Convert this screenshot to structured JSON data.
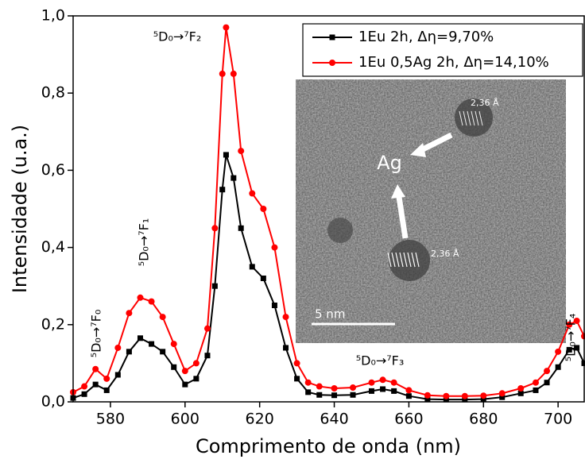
{
  "chart_data": {
    "type": "line",
    "x_label": "Comprimento de onda (nm)",
    "y_label": "Intensidade (u.a.)",
    "xlim": [
      570,
      707
    ],
    "xticks": [
      580,
      600,
      620,
      640,
      660,
      680,
      700
    ],
    "ylim": [
      0,
      1
    ],
    "yticks": [
      {
        "value": 0,
        "label": "0,0"
      },
      {
        "value": 0.2,
        "label": "0,2"
      },
      {
        "value": 0.4,
        "label": "0,4"
      },
      {
        "value": 0.6,
        "label": "0,6"
      },
      {
        "value": 0.8,
        "label": "0,8"
      },
      {
        "value": 1,
        "label": "1,0"
      }
    ],
    "grid": false,
    "legend": "upper right",
    "x": [
      570,
      573,
      576,
      579,
      582,
      585,
      588,
      591,
      594,
      597,
      600,
      603,
      606,
      608,
      610,
      611,
      613,
      615,
      618,
      621,
      624,
      627,
      630,
      633,
      636,
      640,
      645,
      650,
      653,
      656,
      660,
      665,
      670,
      675,
      680,
      685,
      690,
      694,
      697,
      700,
      703,
      705,
      707
    ],
    "series": [
      {
        "name": "1Eu 2h, Δη=9,70%",
        "color": "#000000",
        "marker": "square",
        "values": [
          0.01,
          0.02,
          0.045,
          0.03,
          0.07,
          0.13,
          0.165,
          0.15,
          0.13,
          0.09,
          0.045,
          0.06,
          0.12,
          0.3,
          0.55,
          0.64,
          0.58,
          0.45,
          0.35,
          0.32,
          0.25,
          0.14,
          0.06,
          0.025,
          0.018,
          0.017,
          0.018,
          0.028,
          0.033,
          0.028,
          0.015,
          0.007,
          0.006,
          0.006,
          0.007,
          0.012,
          0.022,
          0.03,
          0.05,
          0.09,
          0.135,
          0.14,
          0.1
        ]
      },
      {
        "name": "1Eu 0,5Ag 2h, Δη=14,10%",
        "color": "#ff0000",
        "marker": "circle",
        "values": [
          0.025,
          0.04,
          0.085,
          0.06,
          0.14,
          0.23,
          0.27,
          0.26,
          0.22,
          0.15,
          0.08,
          0.1,
          0.19,
          0.45,
          0.85,
          0.97,
          0.85,
          0.65,
          0.54,
          0.5,
          0.4,
          0.22,
          0.1,
          0.05,
          0.04,
          0.035,
          0.037,
          0.05,
          0.057,
          0.05,
          0.03,
          0.017,
          0.015,
          0.015,
          0.016,
          0.022,
          0.035,
          0.05,
          0.08,
          0.13,
          0.2,
          0.21,
          0.17
        ]
      }
    ],
    "annotations": [
      "⁵D₀→⁷F₀",
      "⁵D₀→⁷F₁",
      "⁵D₀→⁷F₂",
      "⁵D₀→⁷F₃",
      "⁵D₀→⁷F₄"
    ],
    "inset": {
      "labels": [
        "Ag",
        "2,36 Å",
        "2,36 Å",
        "5 nm"
      ]
    }
  }
}
